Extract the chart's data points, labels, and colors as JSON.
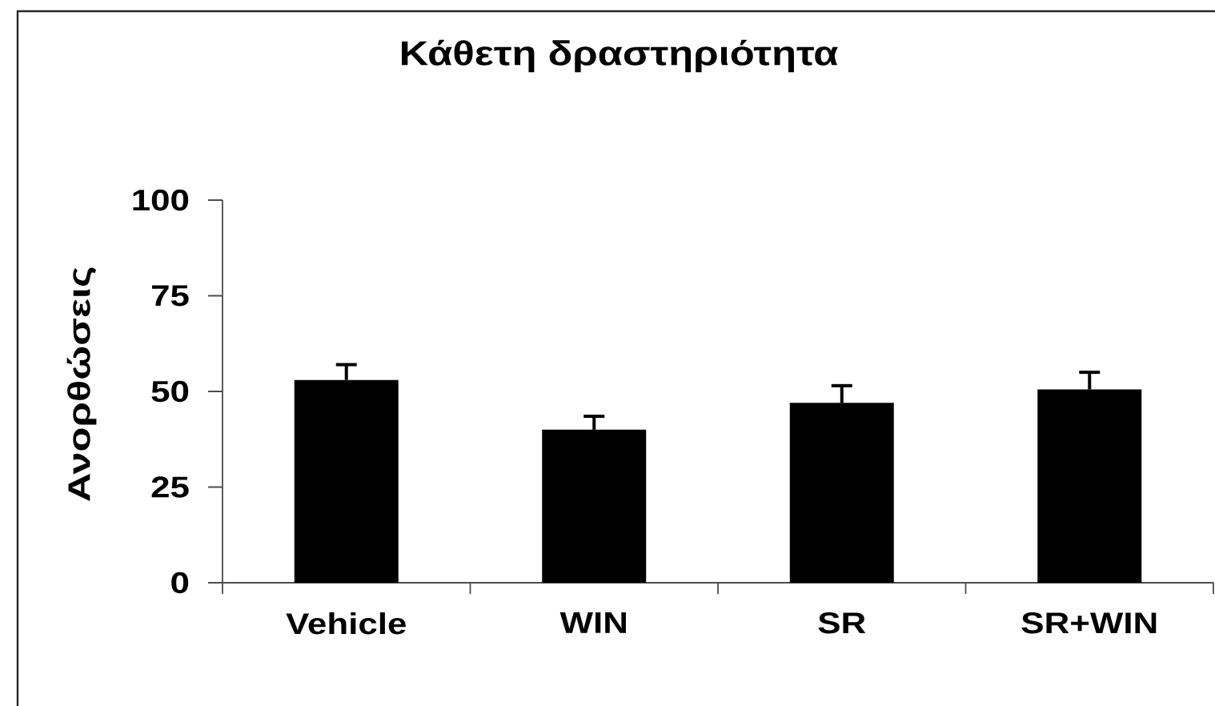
{
  "chart_data": {
    "type": "bar",
    "title": "Κάθετη δραστηριότητα",
    "ylabel": "Ανορθώσεις",
    "categories": [
      "Vehicle",
      "WIN",
      "SR",
      "SR+WIN"
    ],
    "values": [
      53,
      40,
      47,
      50.5
    ],
    "errors": [
      [
        53,
        57
      ],
      [
        40,
        43.5
      ],
      [
        47,
        51.5
      ],
      [
        50.5,
        55
      ]
    ],
    "color": "#000000",
    "ylim": [
      0,
      100
    ],
    "yticks": [
      0,
      25,
      50,
      75,
      100
    ]
  }
}
